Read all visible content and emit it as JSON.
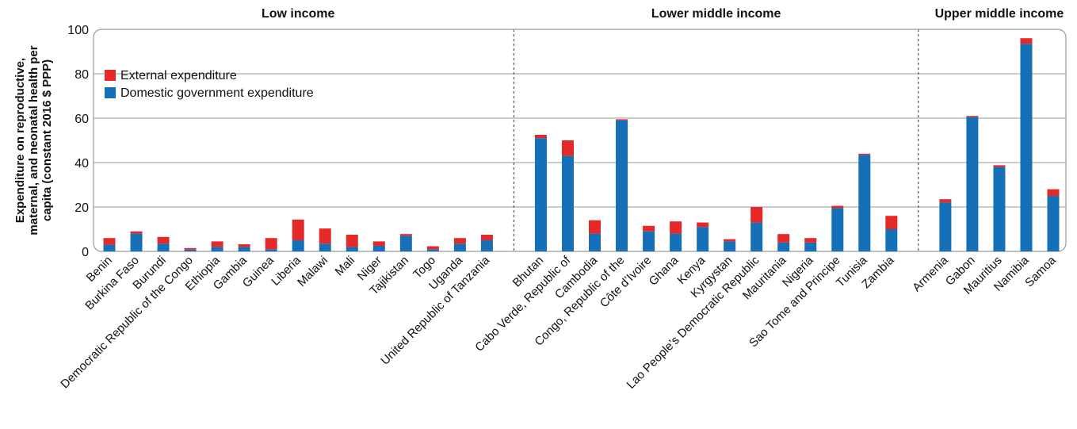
{
  "chart_data": {
    "type": "bar",
    "stacked": true,
    "ylabel_lines": [
      "Expenditure on reproductive,",
      "maternal, and neonatal health per",
      "capita (constant 2016 $ PPP)"
    ],
    "ylim": [
      0,
      100
    ],
    "yticks": [
      0,
      20,
      40,
      60,
      80,
      100
    ],
    "grid": true,
    "legend_position": "top-left",
    "colors": {
      "domestic": "#1570b7",
      "external": "#e52929"
    },
    "series": [
      {
        "name": "External expenditure",
        "key": "external",
        "color": "#e52929"
      },
      {
        "name": "Domestic government expenditure",
        "key": "domestic",
        "color": "#1570b7"
      }
    ],
    "groups": [
      {
        "name": "Low income",
        "categories": [
          "Benin",
          "Burkina Faso",
          "Burundi",
          "Democratic Republic of the Congo",
          "Ethiopia",
          "Gambia",
          "Guinea",
          "Liberia",
          "Malawi",
          "Mali",
          "Niger",
          "Tajikistan",
          "Togo",
          "Uganda",
          "United Republic of Tanzania"
        ],
        "domestic": [
          3,
          8,
          3.5,
          0.8,
          2,
          2,
          1,
          5,
          3.5,
          2,
          2.5,
          7,
          1,
          3.5,
          5
        ],
        "external": [
          3,
          1,
          3,
          0.7,
          2.5,
          1.2,
          5,
          9.3,
          6.8,
          5.5,
          2,
          0.8,
          1.3,
          2.5,
          2.5
        ]
      },
      {
        "name": "Lower middle income",
        "categories": [
          "Bhutan",
          "Cabo Verde, Republic of",
          "Cambodia",
          "Congo, Republic of the",
          "Côte d’Ivoire",
          "Ghana",
          "Kenya",
          "Kyrgystan",
          "Lao People’s Democratic Republic",
          "Mauritania",
          "Nigeria",
          "Sao Tome and Principe",
          "Tunisia",
          "Zambia"
        ],
        "domestic": [
          51,
          43,
          8,
          59,
          9,
          8,
          11,
          4.5,
          13,
          4,
          4,
          19.5,
          43.5,
          10
        ],
        "external": [
          1.5,
          7,
          6,
          0.5,
          2.5,
          5.5,
          2,
          1,
          7,
          3.8,
          2,
          1,
          0.5,
          6
        ]
      },
      {
        "name": "Upper middle income",
        "categories": [
          "Armenia",
          "Gabon",
          "Mauritius",
          "Namibia",
          "Samoa"
        ],
        "domestic": [
          22,
          60.5,
          38,
          93.5,
          25
        ],
        "external": [
          1.5,
          0.5,
          0.8,
          2.5,
          3
        ]
      }
    ]
  }
}
